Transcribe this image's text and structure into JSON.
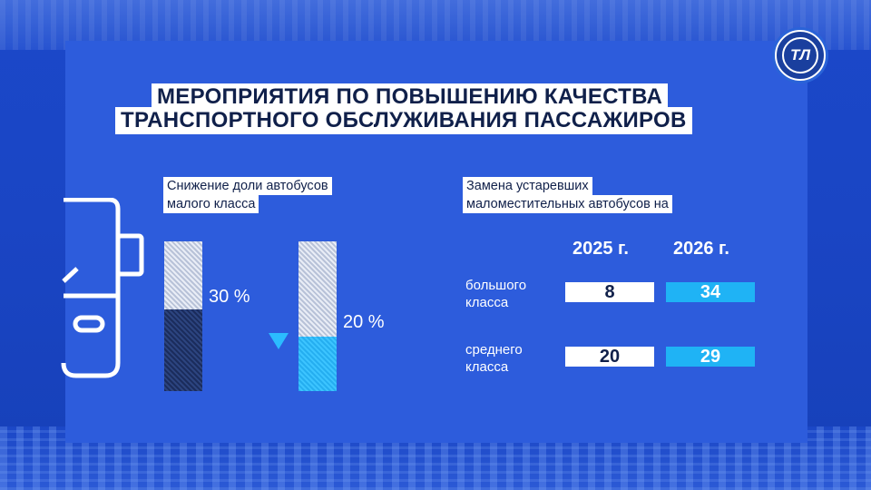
{
  "logo": {
    "text": "ТЛ",
    "icon": "broadcaster-logo-icon"
  },
  "title": {
    "line1": "МЕРОПРИЯТИЯ ПО ПОВЫШЕНИЮ КАЧЕСТВА",
    "line2": "ТРАНСПОРТНОГО ОБСЛУЖИВАНИЯ ПАССАЖИРОВ"
  },
  "left_section": {
    "label_line1": "Снижение доли автобусов",
    "label_line2": "малого класса",
    "icon": "bus-outline-icon",
    "before_share_pct": 30,
    "after_share_pct": 20,
    "before_label": "30 %",
    "after_label": "20 %",
    "decrease_icon": "down-triangle-icon"
  },
  "right_section": {
    "label_line1": "Замена устаревших",
    "label_line2": "маломестительных автобусов на",
    "columns": [
      "2025 г.",
      "2026 г."
    ],
    "rows": [
      {
        "label_line1": "большого",
        "label_line2": "класса",
        "values": [
          "8",
          "34"
        ]
      },
      {
        "label_line1": "среднего",
        "label_line2": "класса",
        "values": [
          "20",
          "29"
        ]
      }
    ]
  },
  "colors": {
    "background": "#1b48c9",
    "panel": "#2d5cdc",
    "accent_cyan": "#1fb3f5",
    "dark_bar": "#1b2c5c",
    "title_text": "#10204a"
  }
}
